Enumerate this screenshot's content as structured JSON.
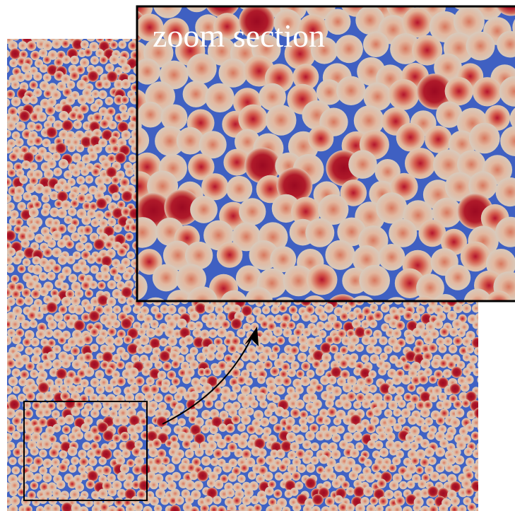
{
  "inset": {
    "label": "zoom section"
  }
}
